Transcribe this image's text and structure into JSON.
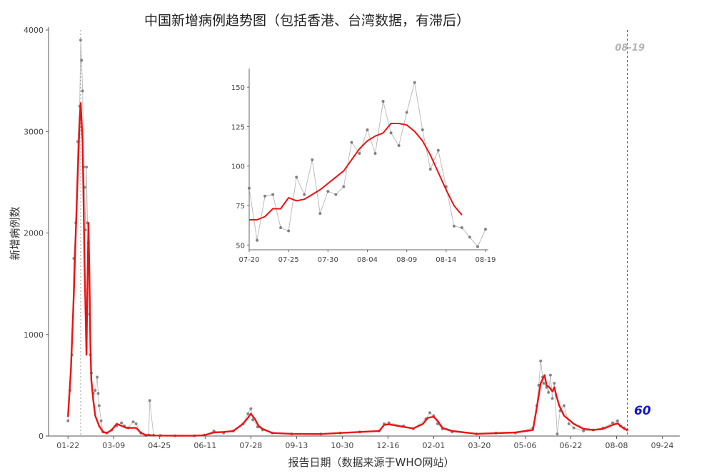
{
  "chart_data": [
    {
      "type": "line",
      "title": "中国新增病例趋势图（包括香港、台湾数据，有滞后）",
      "xlabel": "报告日期（数据来源于WHO网站）",
      "ylabel": "新增病例数",
      "ylim": [
        0,
        4000
      ],
      "yticks": [
        0,
        1000,
        2000,
        3000,
        4000
      ],
      "x_tick_labels": [
        "01-22",
        "03-09",
        "04-25",
        "06-11",
        "07-28",
        "09-13",
        "10-30",
        "12-16",
        "02-01",
        "03-20",
        "05-06",
        "06-22",
        "08-08",
        "09-24"
      ],
      "x_tick_days": [
        0,
        47,
        94,
        141,
        188,
        235,
        282,
        329,
        376,
        423,
        470,
        517,
        564,
        611
      ],
      "x_range_days": [
        -20,
        626
      ],
      "grid": false,
      "reference_lines": [
        {
          "day": 13,
          "style": "dotted",
          "color": "#9a9a9a"
        },
        {
          "day": 575,
          "style": "dashed",
          "color": "#3333cc"
        }
      ],
      "annotations": {
        "date_label": "08-19",
        "value_label": "60"
      },
      "series": [
        {
          "style": "grey points + thin line (daily)",
          "color": "#9a9a9a",
          "x": [
            0,
            2,
            4,
            6,
            8,
            10,
            12,
            13,
            14,
            15,
            16,
            17,
            18,
            19,
            20,
            21,
            22,
            23,
            24,
            26,
            28,
            30,
            31,
            32,
            34,
            36,
            40,
            45,
            50,
            55,
            58,
            62,
            67,
            70,
            75,
            80,
            83,
            84,
            88,
            95,
            110,
            130,
            140,
            150,
            160,
            170,
            180,
            185,
            188,
            190,
            195,
            200,
            210,
            230,
            260,
            280,
            300,
            320,
            325,
            330,
            345,
            355,
            368,
            372,
            376,
            380,
            385,
            395,
            420,
            440,
            460,
            478,
            482,
            484,
            486,
            488,
            489,
            492,
            494,
            496,
            498,
            500,
            503,
            506,
            510,
            515,
            520,
            530,
            540,
            550,
            560,
            565,
            568,
            572,
            575
          ],
          "y": [
            150,
            450,
            800,
            1750,
            2100,
            2900,
            3250,
            3900,
            3700,
            3400,
            2650,
            2450,
            2030,
            2650,
            2100,
            1900,
            1200,
            800,
            620,
            420,
            450,
            580,
            420,
            300,
            150,
            40,
            30,
            60,
            100,
            130,
            100,
            80,
            140,
            120,
            30,
            5,
            10,
            350,
            8,
            5,
            3,
            3,
            10,
            50,
            30,
            50,
            120,
            220,
            270,
            160,
            90,
            60,
            30,
            20,
            20,
            30,
            40,
            50,
            120,
            130,
            100,
            70,
            170,
            230,
            200,
            120,
            70,
            40,
            20,
            30,
            30,
            80,
            300,
            500,
            740,
            580,
            520,
            480,
            430,
            600,
            370,
            520,
            20,
            250,
            300,
            120,
            80,
            50,
            60,
            80,
            130,
            150,
            100,
            80,
            60
          ]
        },
        {
          "style": "red smoothed line (moving average)",
          "color": "#ee1111",
          "x": [
            0,
            3,
            6,
            9,
            12,
            13,
            15,
            17,
            19,
            20,
            21,
            22,
            23,
            24,
            26,
            28,
            32,
            36,
            40,
            45,
            50,
            55,
            60,
            65,
            70,
            75,
            80,
            90,
            110,
            130,
            140,
            150,
            160,
            170,
            180,
            185,
            188,
            192,
            196,
            200,
            210,
            230,
            260,
            280,
            300,
            320,
            325,
            330,
            345,
            355,
            365,
            370,
            376,
            380,
            385,
            395,
            420,
            440,
            460,
            478,
            482,
            486,
            490,
            492,
            495,
            498,
            500,
            502,
            505,
            510,
            520,
            530,
            540,
            550,
            560,
            565,
            568,
            572,
            575
          ],
          "y": [
            190,
            650,
            1400,
            2300,
            3120,
            3280,
            2900,
            1700,
            800,
            1500,
            2100,
            1600,
            900,
            550,
            350,
            200,
            100,
            40,
            30,
            60,
            120,
            100,
            80,
            80,
            80,
            30,
            10,
            5,
            3,
            3,
            8,
            35,
            40,
            50,
            120,
            180,
            220,
            170,
            100,
            70,
            30,
            22,
            20,
            30,
            40,
            50,
            110,
            115,
            90,
            75,
            120,
            180,
            190,
            150,
            80,
            50,
            22,
            28,
            35,
            60,
            280,
            520,
            600,
            500,
            480,
            440,
            480,
            400,
            300,
            200,
            120,
            70,
            60,
            70,
            110,
            125,
            100,
            70,
            60
          ]
        }
      ]
    },
    {
      "type": "line",
      "title": "",
      "inset": true,
      "ylim": [
        47,
        160
      ],
      "yticks": [
        50,
        75,
        100,
        125,
        150
      ],
      "x_tick_labels": [
        "07-20",
        "07-25",
        "07-30",
        "08-04",
        "08-09",
        "08-14",
        "08-19"
      ],
      "x_tick_days": [
        0,
        5,
        10,
        15,
        20,
        25,
        30
      ],
      "x_range_days": [
        0,
        30
      ],
      "series": [
        {
          "style": "grey points + thin line (daily)",
          "color": "#9a9a9a",
          "x": [
            0,
            1,
            2,
            3,
            4,
            5,
            6,
            7,
            8,
            9,
            10,
            11,
            12,
            13,
            14,
            15,
            16,
            17,
            18,
            19,
            20,
            21,
            22,
            23,
            24,
            25,
            26,
            27,
            28,
            29,
            30
          ],
          "y": [
            86,
            53,
            81,
            82,
            61,
            59,
            93,
            82,
            104,
            70,
            84,
            82,
            87,
            115,
            108,
            123,
            108,
            141,
            121,
            113,
            134,
            153,
            123,
            98,
            110,
            87,
            62,
            61,
            55,
            49,
            60
          ]
        },
        {
          "style": "red smoothed line (moving average)",
          "color": "#ee1111",
          "x": [
            0,
            1,
            2,
            3,
            4,
            5,
            6,
            7,
            8,
            9,
            10,
            11,
            12,
            13,
            14,
            15,
            16,
            17,
            18,
            19,
            20,
            21,
            22,
            23,
            24,
            25,
            26,
            27
          ],
          "y": [
            66,
            66,
            68,
            73,
            73,
            80,
            78,
            79,
            82,
            85,
            89,
            93,
            97,
            104,
            111,
            116,
            119,
            121,
            127,
            127,
            126,
            122,
            116,
            107,
            96,
            85,
            75,
            69
          ]
        }
      ]
    }
  ]
}
